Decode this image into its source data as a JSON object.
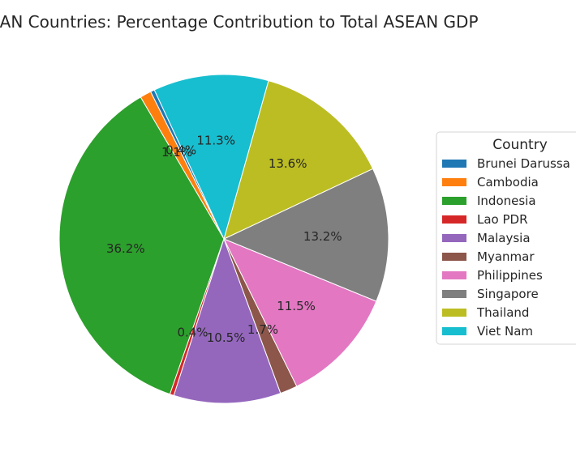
{
  "chart_data": {
    "type": "pie",
    "title": "EAN Countries: Percentage Contribution to Total ASEAN GDP",
    "legend": {
      "title": "Country",
      "placement": "right",
      "entries": [
        "Brunei Darussa",
        "Cambodia",
        "Indonesia",
        "Lao PDR",
        "Malaysia",
        "Myanmar",
        "Philippines",
        "Singapore",
        "Thailand",
        "Viet Nam"
      ]
    },
    "categories": [
      "Brunei Darussalam",
      "Cambodia",
      "Indonesia",
      "Lao PDR",
      "Malaysia",
      "Myanmar",
      "Philippines",
      "Singapore",
      "Thailand",
      "Viet Nam"
    ],
    "values": [
      0.4,
      1.1,
      36.2,
      0.4,
      10.5,
      1.7,
      11.5,
      13.2,
      13.6,
      11.3
    ],
    "labels": [
      "0.4%",
      "1.1%",
      "36.2%",
      "0.4%",
      "10.5%",
      "1.7%",
      "11.5%",
      "13.2%",
      "13.6%",
      "11.3%"
    ],
    "colors": [
      "#1f77b4",
      "#ff7f0e",
      "#2ca02c",
      "#d62728",
      "#9467bd",
      "#8c564b",
      "#e377c2",
      "#7f7f7f",
      "#bcbd22",
      "#17becf"
    ],
    "start_angle_deg": 115,
    "direction": "counterclockwise"
  }
}
